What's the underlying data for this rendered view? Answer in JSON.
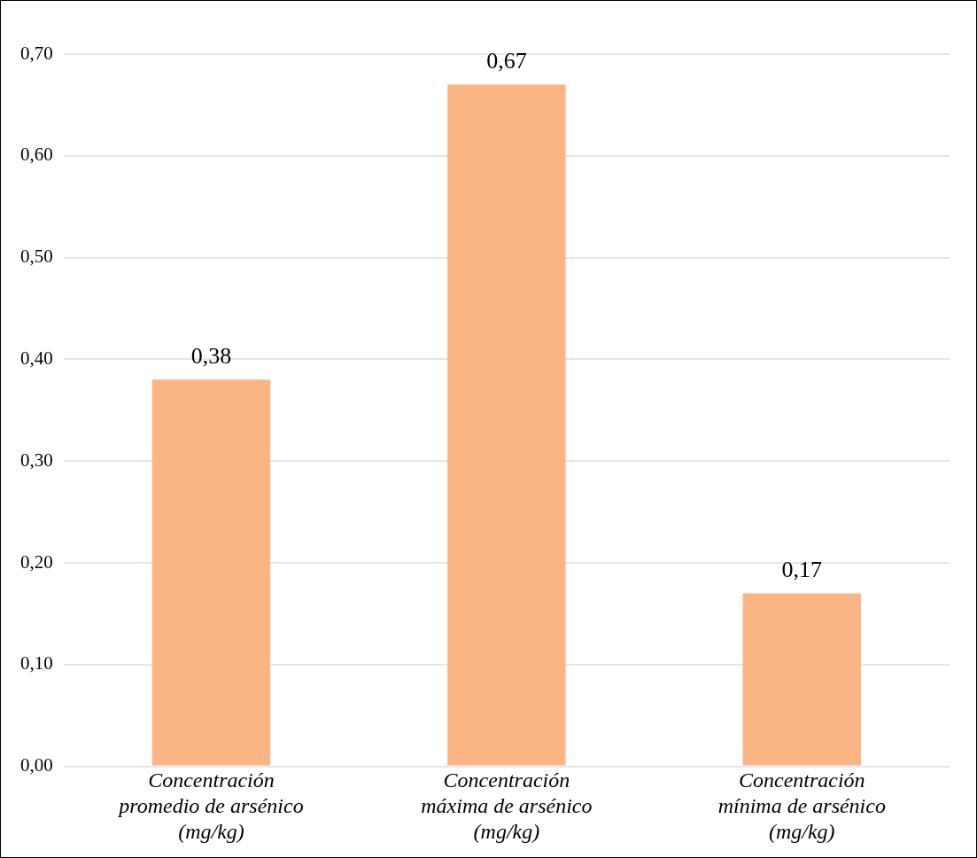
{
  "chart_data": {
    "type": "bar",
    "categories": [
      "Concentración promedio de arsénico (mg/kg)",
      "Concentración máxima de arsénico (mg/kg)",
      "Concentración mínima de arsénico (mg/kg)"
    ],
    "values": [
      0.38,
      0.67,
      0.17
    ],
    "value_labels": [
      "0,38",
      "0,67",
      "0,17"
    ],
    "color": "#fbb484",
    "ylim": [
      0,
      0.7
    ],
    "yticks": [
      {
        "value": 0,
        "label": "0,00"
      },
      {
        "value": 0.1,
        "label": "0,10"
      },
      {
        "value": 0.2,
        "label": "0,20"
      },
      {
        "value": 0.3,
        "label": "0,30"
      },
      {
        "value": 0.4,
        "label": "0,40"
      },
      {
        "value": 0.5,
        "label": "0,50"
      },
      {
        "value": 0.6,
        "label": "0,60"
      },
      {
        "value": 0.7,
        "label": "0,70"
      }
    ],
    "grid": "y"
  }
}
